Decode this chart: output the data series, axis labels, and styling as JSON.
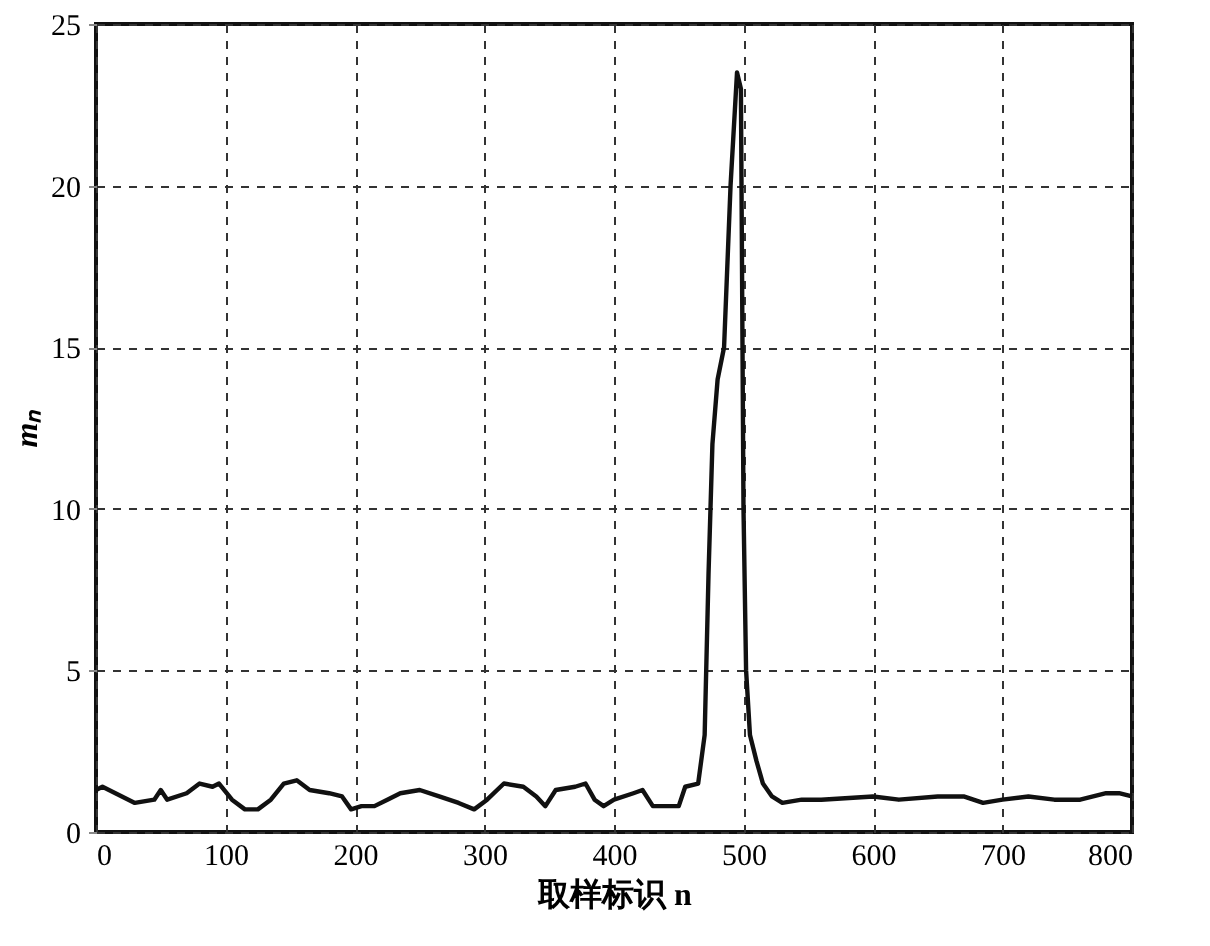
{
  "chart_data": {
    "type": "line",
    "xlabel": "取样标识 n",
    "ylabel": "mₙ",
    "x": [
      0,
      5,
      15,
      30,
      45,
      50,
      55,
      70,
      80,
      90,
      95,
      105,
      115,
      125,
      135,
      145,
      155,
      165,
      180,
      190,
      197,
      205,
      215,
      225,
      235,
      250,
      265,
      280,
      292,
      302,
      315,
      330,
      340,
      347,
      355,
      370,
      378,
      385,
      392,
      400,
      415,
      422,
      430,
      450,
      455,
      465,
      470,
      473,
      476,
      480,
      485,
      490,
      495,
      498,
      500,
      502,
      505,
      510,
      515,
      522,
      530,
      545,
      560,
      600,
      620,
      650,
      670,
      685,
      700,
      720,
      740,
      760,
      780,
      790,
      800
    ],
    "series": [
      {
        "color": "#111111",
        "values": [
          1.3,
          1.4,
          1.2,
          0.9,
          1.0,
          1.3,
          1.0,
          1.2,
          1.5,
          1.4,
          1.5,
          1.0,
          0.7,
          0.7,
          1.0,
          1.5,
          1.6,
          1.3,
          1.2,
          1.1,
          0.7,
          0.8,
          0.8,
          1.0,
          1.2,
          1.3,
          1.1,
          0.9,
          0.7,
          1.0,
          1.5,
          1.4,
          1.1,
          0.8,
          1.3,
          1.4,
          1.5,
          1.0,
          0.8,
          1.0,
          1.2,
          1.3,
          0.8,
          0.8,
          1.4,
          1.5,
          3.0,
          8,
          12,
          14,
          15,
          20,
          23.5,
          23,
          10,
          5,
          3,
          2.2,
          1.5,
          1.1,
          0.9,
          1.0,
          1.0,
          1.1,
          1.0,
          1.1,
          1.1,
          0.9,
          1.0,
          1.1,
          1.0,
          1.0,
          1.2,
          1.2,
          1.1
        ]
      }
    ],
    "xlim": [
      0,
      800
    ],
    "xticks": [
      0,
      100,
      200,
      300,
      400,
      500,
      600,
      700,
      800
    ],
    "ylim": [
      0,
      25
    ],
    "yticks": [
      0,
      5,
      10,
      15,
      20,
      25
    ],
    "grid": true,
    "marker": "none",
    "line_style": "solid"
  }
}
